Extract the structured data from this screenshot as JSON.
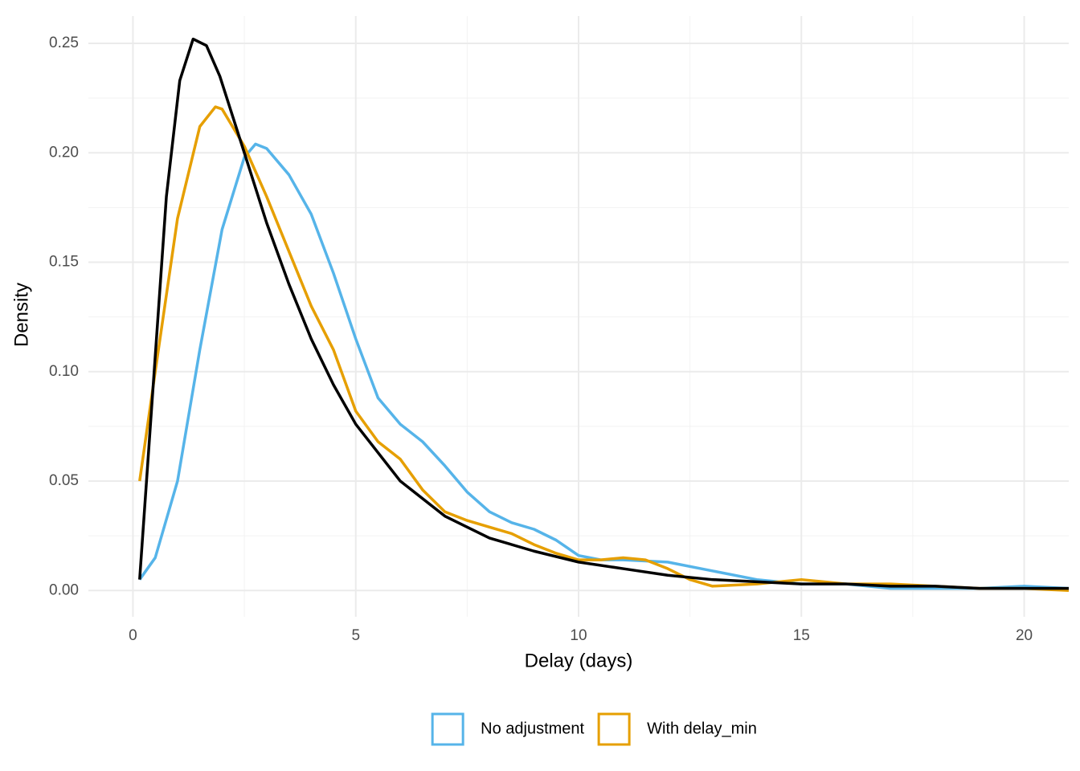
{
  "chart_data": {
    "type": "line",
    "x_label": "Delay (days)",
    "y_label": "Density",
    "xlim": [
      -1,
      21
    ],
    "ylim": [
      -0.012,
      0.2625
    ],
    "xticks": [
      0,
      5,
      10,
      15,
      20
    ],
    "yticks": [
      {
        "value": 0,
        "label": "0.00"
      },
      {
        "value": 0.05,
        "label": "0.05"
      },
      {
        "value": 0.1,
        "label": "0.10"
      },
      {
        "value": 0.15,
        "label": "0.15"
      },
      {
        "value": 0.2,
        "label": "0.20"
      },
      {
        "value": 0.25,
        "label": "0.25"
      }
    ],
    "grid": true,
    "legend_position": "bottom",
    "series": [
      {
        "name": "No adjustment",
        "color": "#56B4E9",
        "x": [
          0.15,
          0.5,
          1.0,
          1.5,
          2.0,
          2.5,
          2.75,
          3.0,
          3.5,
          4.0,
          4.5,
          5.0,
          5.5,
          6.0,
          6.5,
          7.0,
          7.5,
          8.0,
          8.5,
          9.0,
          9.5,
          10,
          10.5,
          11,
          12,
          13,
          14,
          15,
          16,
          17,
          18,
          19,
          20,
          21
        ],
        "values": [
          0.005,
          0.015,
          0.05,
          0.11,
          0.165,
          0.198,
          0.204,
          0.202,
          0.19,
          0.172,
          0.145,
          0.115,
          0.088,
          0.076,
          0.068,
          0.057,
          0.045,
          0.036,
          0.031,
          0.028,
          0.023,
          0.016,
          0.014,
          0.014,
          0.013,
          0.009,
          0.005,
          0.003,
          0.003,
          0.001,
          0.001,
          0.001,
          0.002,
          0.001
        ]
      },
      {
        "name": "With delay_min",
        "color": "#E69F00",
        "x": [
          0.15,
          0.5,
          1.0,
          1.5,
          1.85,
          2.0,
          2.5,
          3.0,
          3.5,
          4.0,
          4.5,
          5.0,
          5.5,
          6.0,
          6.5,
          7.0,
          7.5,
          8,
          8.5,
          9,
          9.5,
          10,
          10.5,
          11,
          11.5,
          12,
          12.5,
          13,
          14,
          15,
          16,
          17,
          18,
          19,
          20,
          21
        ],
        "values": [
          0.05,
          0.1,
          0.17,
          0.212,
          0.221,
          0.22,
          0.203,
          0.18,
          0.155,
          0.13,
          0.11,
          0.082,
          0.068,
          0.06,
          0.046,
          0.036,
          0.032,
          0.029,
          0.026,
          0.021,
          0.017,
          0.014,
          0.014,
          0.015,
          0.014,
          0.01,
          0.005,
          0.002,
          0.003,
          0.005,
          0.003,
          0.003,
          0.002,
          0.001,
          0.001,
          0.0
        ]
      },
      {
        "color": "#000000",
        "x": [
          0.15,
          0.75,
          1.05,
          1.35,
          1.65,
          1.95,
          2.5,
          3.0,
          3.5,
          4.0,
          4.5,
          5.0,
          6,
          7,
          8,
          9,
          10,
          11,
          12,
          13,
          14,
          15,
          16,
          17,
          18,
          19,
          20,
          21
        ],
        "values": [
          0.005,
          0.18,
          0.233,
          0.252,
          0.249,
          0.235,
          0.2,
          0.168,
          0.14,
          0.115,
          0.094,
          0.076,
          0.05,
          0.034,
          0.024,
          0.018,
          0.013,
          0.01,
          0.007,
          0.005,
          0.004,
          0.003,
          0.003,
          0.002,
          0.002,
          0.001,
          0.001,
          0.001
        ]
      }
    ]
  }
}
